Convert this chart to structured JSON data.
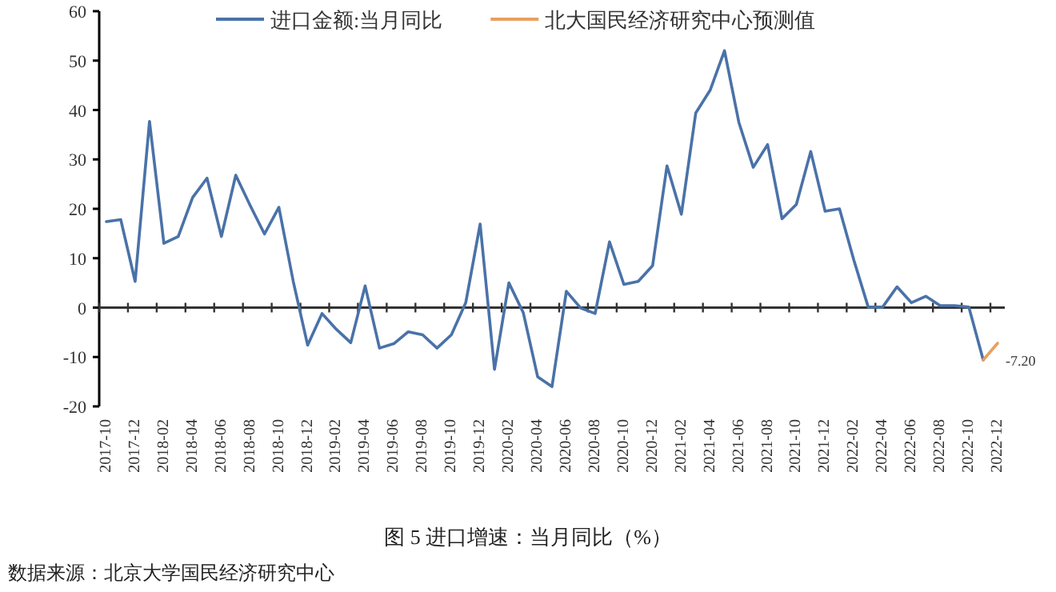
{
  "chart_data": {
    "type": "line",
    "title": "图 5 进口增速：当月同比（%）",
    "annotations": [
      {
        "text": "-7.20",
        "x": "2022-12",
        "y": -7.2
      },
      "数据来源：北京大学国民经济研究中心"
    ],
    "categories": [
      "2017-10",
      null,
      "2017-12",
      null,
      "2018-02",
      null,
      "2018-04",
      null,
      "2018-06",
      null,
      "2018-08",
      null,
      "2018-10",
      null,
      "2018-12",
      null,
      "2019-02",
      null,
      "2019-04",
      null,
      "2019-06",
      null,
      "2019-08",
      null,
      "2019-10",
      null,
      "2019-12",
      null,
      "2020-02",
      null,
      "2020-04",
      null,
      "2020-06",
      null,
      "2020-08",
      null,
      "2020-10",
      null,
      "2020-12",
      null,
      "2021-02",
      null,
      "2021-04",
      null,
      "2021-06",
      null,
      "2021-08",
      null,
      "2021-10",
      null,
      "2021-12",
      null,
      "2022-02",
      null,
      "2022-04",
      null,
      "2022-06",
      null,
      "2022-08",
      null,
      "2022-10",
      null,
      "2022-12"
    ],
    "series": [
      {
        "name": "进口金额:当月同比",
        "color": "#4a72a8",
        "values": [
          17.4,
          17.8,
          5.3,
          37.7,
          13,
          14.4,
          22.3,
          26.2,
          14.4,
          26.8,
          20.7,
          14.9,
          20.3,
          5.3,
          -7.6,
          -1.2,
          -4.4,
          -7.1,
          4.4,
          -8.2,
          -7.3,
          -4.9,
          -5.5,
          -8.2,
          -5.5,
          1.0,
          16.9,
          -12.5,
          5.0,
          -1.0,
          -14,
          -16,
          3.3,
          -0.1,
          -1.2,
          13.3,
          4.7,
          5.3,
          8.5,
          28.7,
          18.9,
          39.4,
          44,
          52,
          37.5,
          28.4,
          33,
          18,
          20.9,
          31.6,
          19.5,
          20,
          9.6,
          0.1,
          0.1,
          4.2,
          1,
          2.3,
          0.4,
          0.4,
          0.1,
          -10.6,
          null
        ]
      },
      {
        "name": "北大国民经济研究中心预测值",
        "color": "#e8a060",
        "values": [
          null,
          null,
          null,
          null,
          null,
          null,
          null,
          null,
          null,
          null,
          null,
          null,
          null,
          null,
          null,
          null,
          null,
          null,
          null,
          null,
          null,
          null,
          null,
          null,
          null,
          null,
          null,
          null,
          null,
          null,
          null,
          null,
          null,
          null,
          null,
          null,
          null,
          null,
          null,
          null,
          null,
          null,
          null,
          null,
          null,
          null,
          null,
          null,
          null,
          null,
          null,
          null,
          null,
          null,
          null,
          null,
          null,
          null,
          null,
          null,
          null,
          -10.6,
          -7.2
        ]
      }
    ],
    "ylim": [
      -20,
      60
    ],
    "yticks": [
      -20,
      -10,
      0,
      10,
      20,
      30,
      40,
      50,
      60
    ],
    "legend": "top"
  }
}
